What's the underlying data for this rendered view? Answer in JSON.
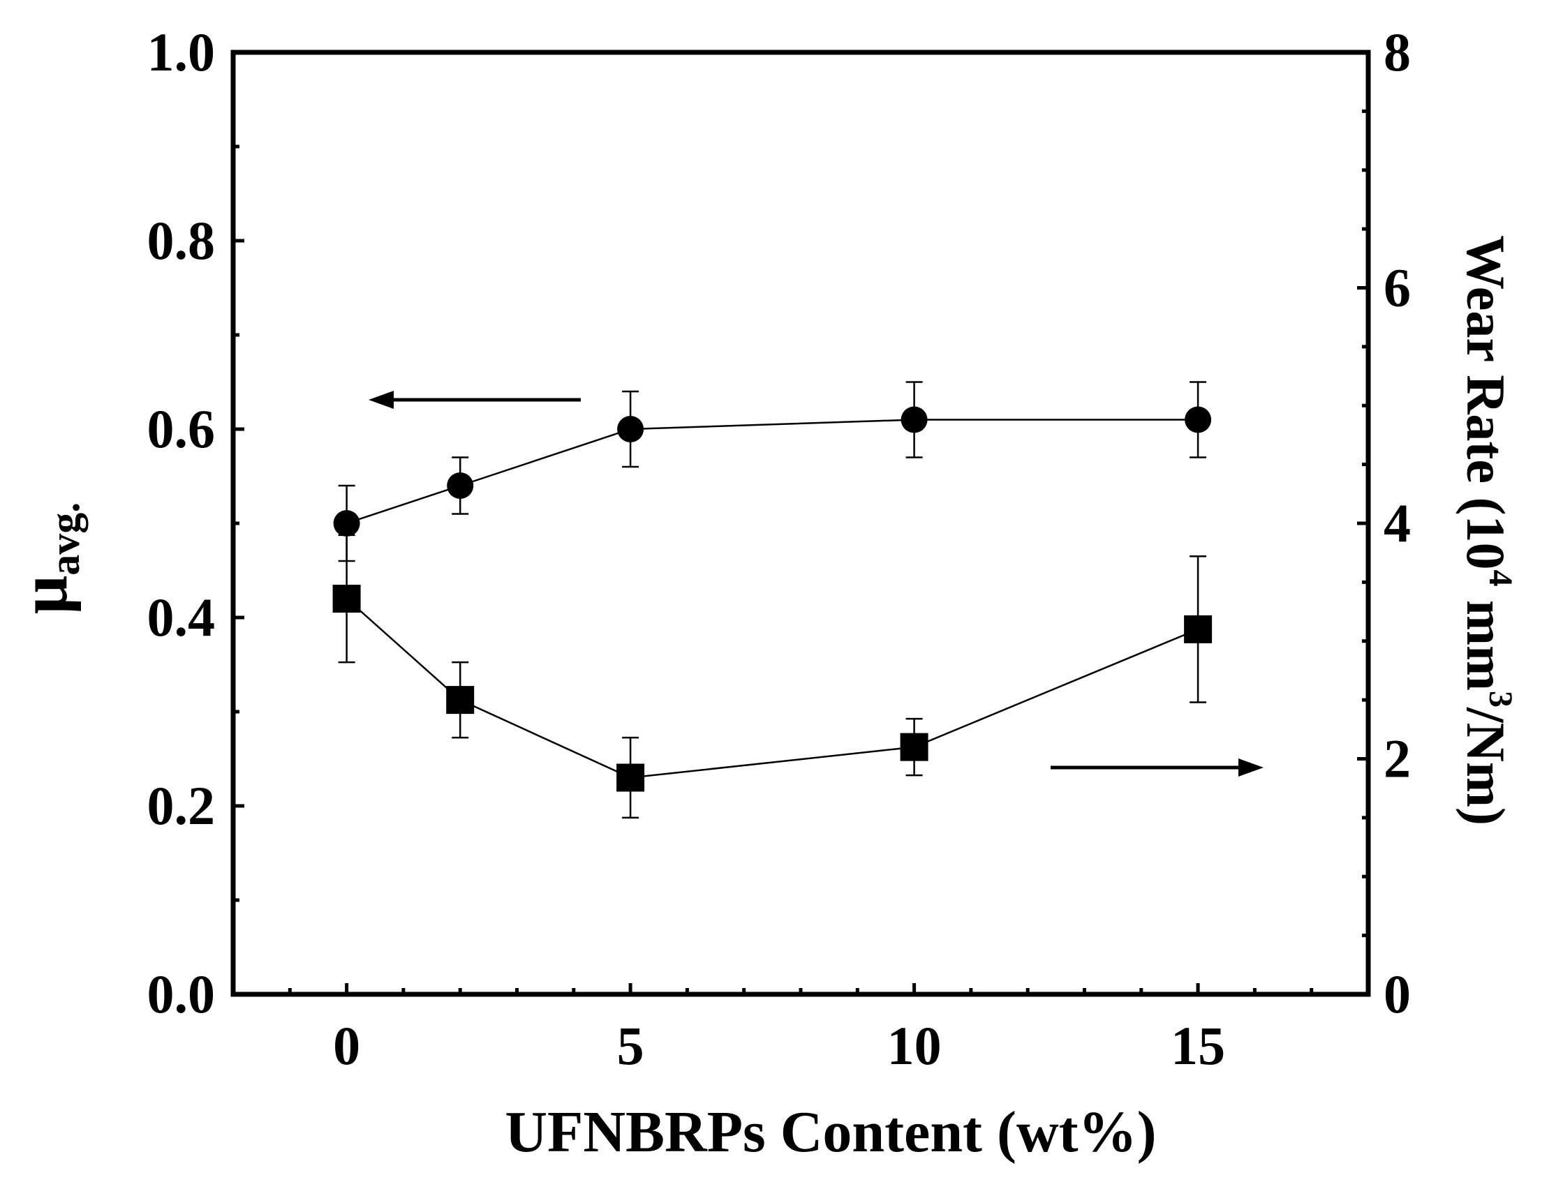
{
  "chart_data": {
    "type": "scatter",
    "title": "",
    "xlabel": "UFNBRPs Content (wt%)",
    "ylabel_left": {
      "main": "μ",
      "sub": "avg."
    },
    "ylabel_right": {
      "main": "Wear Rate (10",
      "sup1": "4",
      "mid": " mm",
      "sup2": "3",
      "end": "/Nm)"
    },
    "xlim": [
      -2,
      18
    ],
    "ylim_left": [
      0.0,
      1.0
    ],
    "ylim_right": [
      0,
      8
    ],
    "x_ticks": [
      "0",
      "5",
      "10",
      "15"
    ],
    "y_ticks_left": [
      "0.0",
      "0.2",
      "0.4",
      "0.6",
      "0.8",
      "1.0"
    ],
    "y_ticks_right": [
      "0",
      "2",
      "4",
      "6",
      "8"
    ],
    "grid": false,
    "series": [
      {
        "marker": "circle",
        "axis": "left",
        "x": [
          0,
          2,
          5,
          10,
          15
        ],
        "y": [
          0.5,
          0.54,
          0.6,
          0.61,
          0.61
        ],
        "err": [
          0.04,
          0.03,
          0.04,
          0.04,
          0.04
        ]
      },
      {
        "marker": "square",
        "axis": "right",
        "x": [
          0,
          2,
          5,
          10,
          15
        ],
        "y": [
          3.36,
          2.5,
          1.84,
          2.1,
          3.1
        ],
        "err": [
          0.54,
          0.32,
          0.34,
          0.24,
          0.62
        ]
      }
    ],
    "arrows": [
      {
        "direction": "left",
        "points_to_axis": "left"
      },
      {
        "direction": "right",
        "points_to_axis": "right"
      }
    ]
  }
}
